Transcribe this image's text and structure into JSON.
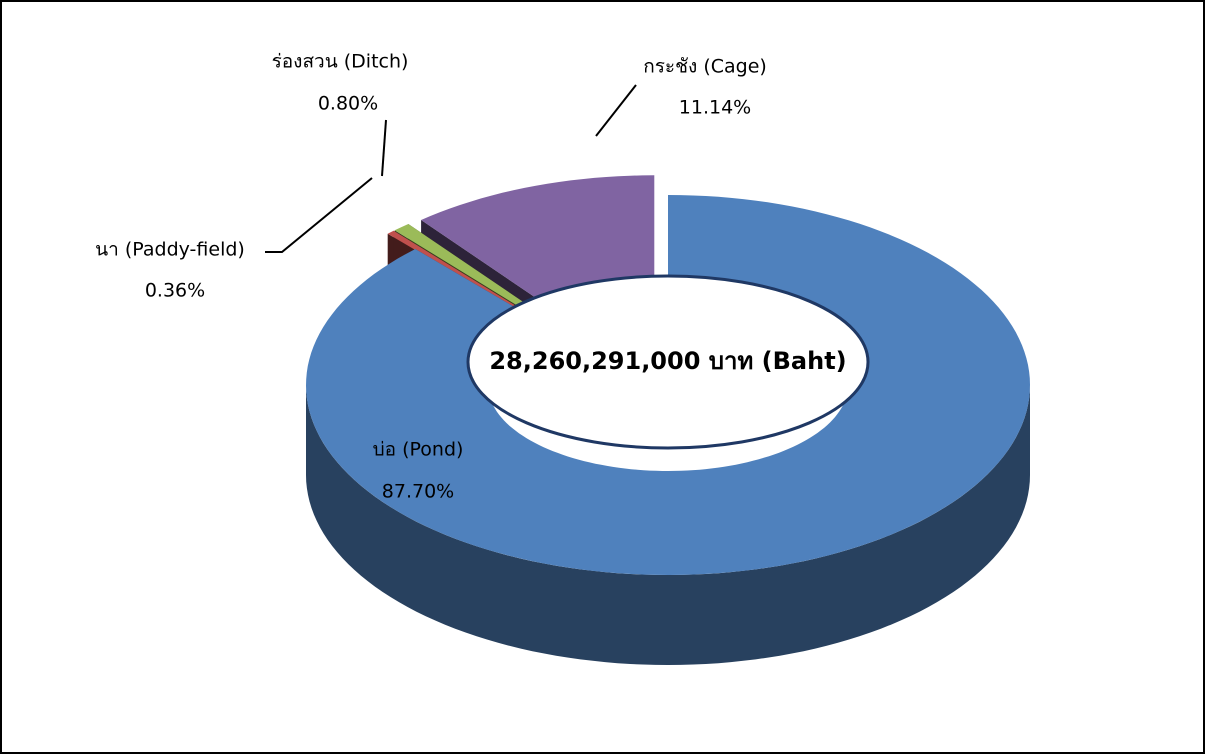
{
  "chart_data": {
    "type": "doughnut",
    "categories": [
      "บ่อ (Pond)",
      "นา (Paddy-field)",
      "ร่องสวน (Ditch)",
      "กระชัง (Cage)"
    ],
    "values": [
      87.7,
      0.36,
      0.8,
      11.14
    ],
    "value_labels": [
      "87.70%",
      "0.36%",
      "0.80%",
      "11.14%"
    ],
    "colors": [
      "#4f81bd",
      "#c0504d",
      "#9bbb59",
      "#8064a2"
    ],
    "center_label": "28,260,291,000 บาท (Baht)"
  }
}
